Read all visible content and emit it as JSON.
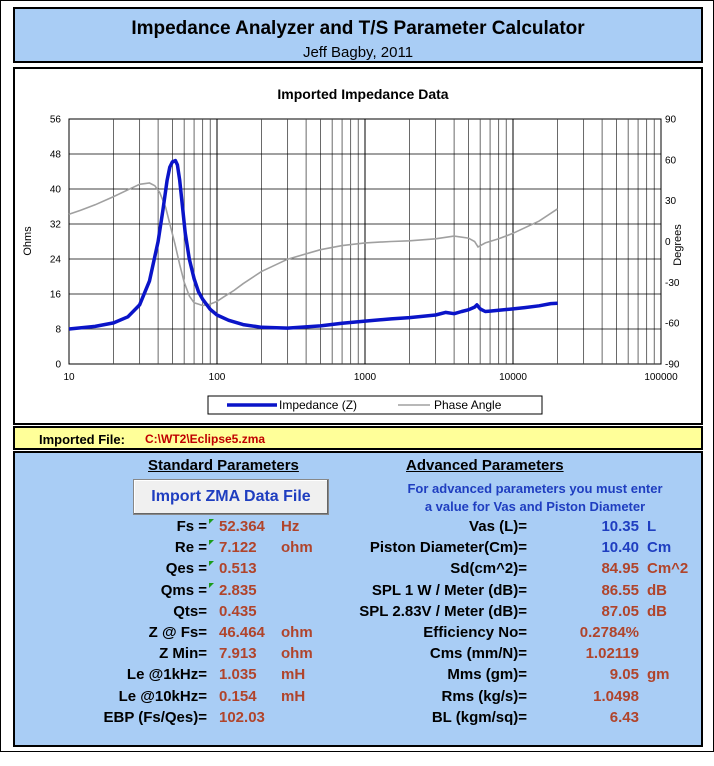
{
  "header": {
    "title": "Impedance Analyzer and T/S Parameter Calculator",
    "subtitle": "Jeff Bagby, 2011"
  },
  "chart_data": {
    "type": "line",
    "title": "Imported Impedance Data",
    "xscale": "log",
    "xlim": [
      10,
      100000
    ],
    "x_ticks": [
      "10",
      "100",
      "1000",
      "10000",
      "100000"
    ],
    "ylabel": "Ohms",
    "ylim": [
      0,
      56
    ],
    "y_ticks": [
      "0",
      "8",
      "16",
      "24",
      "32",
      "40",
      "48",
      "56"
    ],
    "y2label": "Degrees",
    "y2lim": [
      -90,
      90
    ],
    "y2_ticks": [
      "-90",
      "-60",
      "-30",
      "0",
      "30",
      "60",
      "90"
    ],
    "grid": true,
    "legend": "bottom-center",
    "colors": {
      "impedance": "#0a14c8",
      "phase": "#a0a0a0"
    },
    "series": [
      {
        "name": "Impedance (Z)",
        "axis": "left",
        "x": [
          10,
          15,
          20,
          25,
          30,
          35,
          40,
          43,
          46,
          48,
          50,
          52.364,
          54,
          56,
          58,
          61,
          65,
          70,
          75,
          80,
          90,
          100,
          120,
          150,
          200,
          300,
          500,
          700,
          1000,
          1500,
          2000,
          3000,
          3500,
          4000,
          4500,
          5000,
          5500,
          5700,
          6000,
          6500,
          7000,
          8000,
          10000,
          12000,
          15000,
          18000,
          20000
        ],
        "y": [
          8.0,
          8.6,
          9.4,
          10.8,
          13.5,
          19,
          28,
          35,
          42,
          45,
          46.2,
          46.5,
          45.5,
          42,
          37,
          30,
          24,
          19.5,
          16.5,
          14.8,
          12.5,
          11.2,
          10.0,
          9.0,
          8.4,
          8.2,
          8.7,
          9.3,
          9.8,
          10.3,
          10.6,
          11.2,
          11.8,
          11.5,
          12.0,
          12.4,
          13.0,
          13.5,
          12.6,
          12.0,
          12.1,
          12.3,
          12.6,
          12.9,
          13.3,
          13.8,
          13.9
        ]
      },
      {
        "name": "Phase Angle",
        "axis": "right",
        "x": [
          10,
          12,
          15,
          20,
          25,
          30,
          35,
          38,
          41,
          45,
          48,
          52,
          56,
          60,
          65,
          70,
          75,
          80,
          90,
          100,
          110,
          130,
          150,
          200,
          300,
          500,
          700,
          1000,
          1500,
          2000,
          3000,
          4000,
          5000,
          5500,
          5800,
          6500,
          8000,
          10000,
          15000,
          20000
        ],
        "y": [
          20,
          23,
          27,
          33,
          38,
          42,
          43,
          41,
          36,
          25,
          13,
          -2,
          -17,
          -30,
          -40,
          -45,
          -46,
          -47,
          -46,
          -44,
          -41,
          -36,
          -31,
          -22,
          -13,
          -6,
          -3,
          -1,
          0,
          0.5,
          2,
          4,
          2.5,
          0,
          -4,
          -1,
          2,
          6,
          15,
          24
        ]
      }
    ]
  },
  "file": {
    "label": "Imported File:",
    "value": "C:\\WT2\\Eclipse5.zma"
  },
  "standard": {
    "title": "Standard Parameters",
    "button": "Import ZMA Data File",
    "rows": [
      {
        "label": "Fs =",
        "value": "52.364",
        "unit": "Hz",
        "flag": true
      },
      {
        "label": "Re =",
        "value": "7.122",
        "unit": "ohm",
        "flag": true
      },
      {
        "label": "Qes =",
        "value": "0.513",
        "unit": "",
        "flag": true
      },
      {
        "label": "Qms =",
        "value": "2.835",
        "unit": "",
        "flag": true
      },
      {
        "label": "Qts=",
        "value": "0.435",
        "unit": "",
        "flag": false
      },
      {
        "label": "Z @ Fs=",
        "value": "46.464",
        "unit": "ohm",
        "flag": false
      },
      {
        "label": "Z Min=",
        "value": "7.913",
        "unit": "ohm",
        "flag": false
      },
      {
        "label": "Le @1kHz=",
        "value": "1.035",
        "unit": "mH",
        "flag": false
      },
      {
        "label": "Le @10kHz=",
        "value": "0.154",
        "unit": "mH",
        "flag": false
      },
      {
        "label": "EBP (Fs/Qes)=",
        "value": "102.03",
        "unit": "",
        "flag": false
      }
    ]
  },
  "advanced": {
    "title": "Advanced Parameters",
    "note1": "For advanced parameters you must enter",
    "note2": "a value for Vas and Piston Diameter",
    "rows": [
      {
        "label": "Vas (L)=",
        "value": "10.35",
        "unit": "L",
        "input": true
      },
      {
        "label": "Piston Diameter(Cm)=",
        "value": "10.40",
        "unit": "Cm",
        "input": true
      },
      {
        "label": "Sd(cm^2)=",
        "value": "84.95",
        "unit": "Cm^2",
        "input": false
      },
      {
        "label": "SPL 1 W / Meter (dB)=",
        "value": "86.55",
        "unit": "dB",
        "input": false
      },
      {
        "label": "SPL 2.83V / Meter (dB)=",
        "value": "87.05",
        "unit": "dB",
        "input": false
      },
      {
        "label": "Efficiency No=",
        "value": "0.2784%",
        "unit": "",
        "input": false
      },
      {
        "label": "Cms (mm/N)=",
        "value": "1.02119",
        "unit": "",
        "input": false
      },
      {
        "label": "Mms (gm)=",
        "value": "9.05",
        "unit": "gm",
        "input": false
      },
      {
        "label": "Rms (kg/s)=",
        "value": "1.0498",
        "unit": "",
        "input": false
      },
      {
        "label": "BL (kgm/sq)=",
        "value": "6.43",
        "unit": "",
        "input": false
      }
    ]
  }
}
